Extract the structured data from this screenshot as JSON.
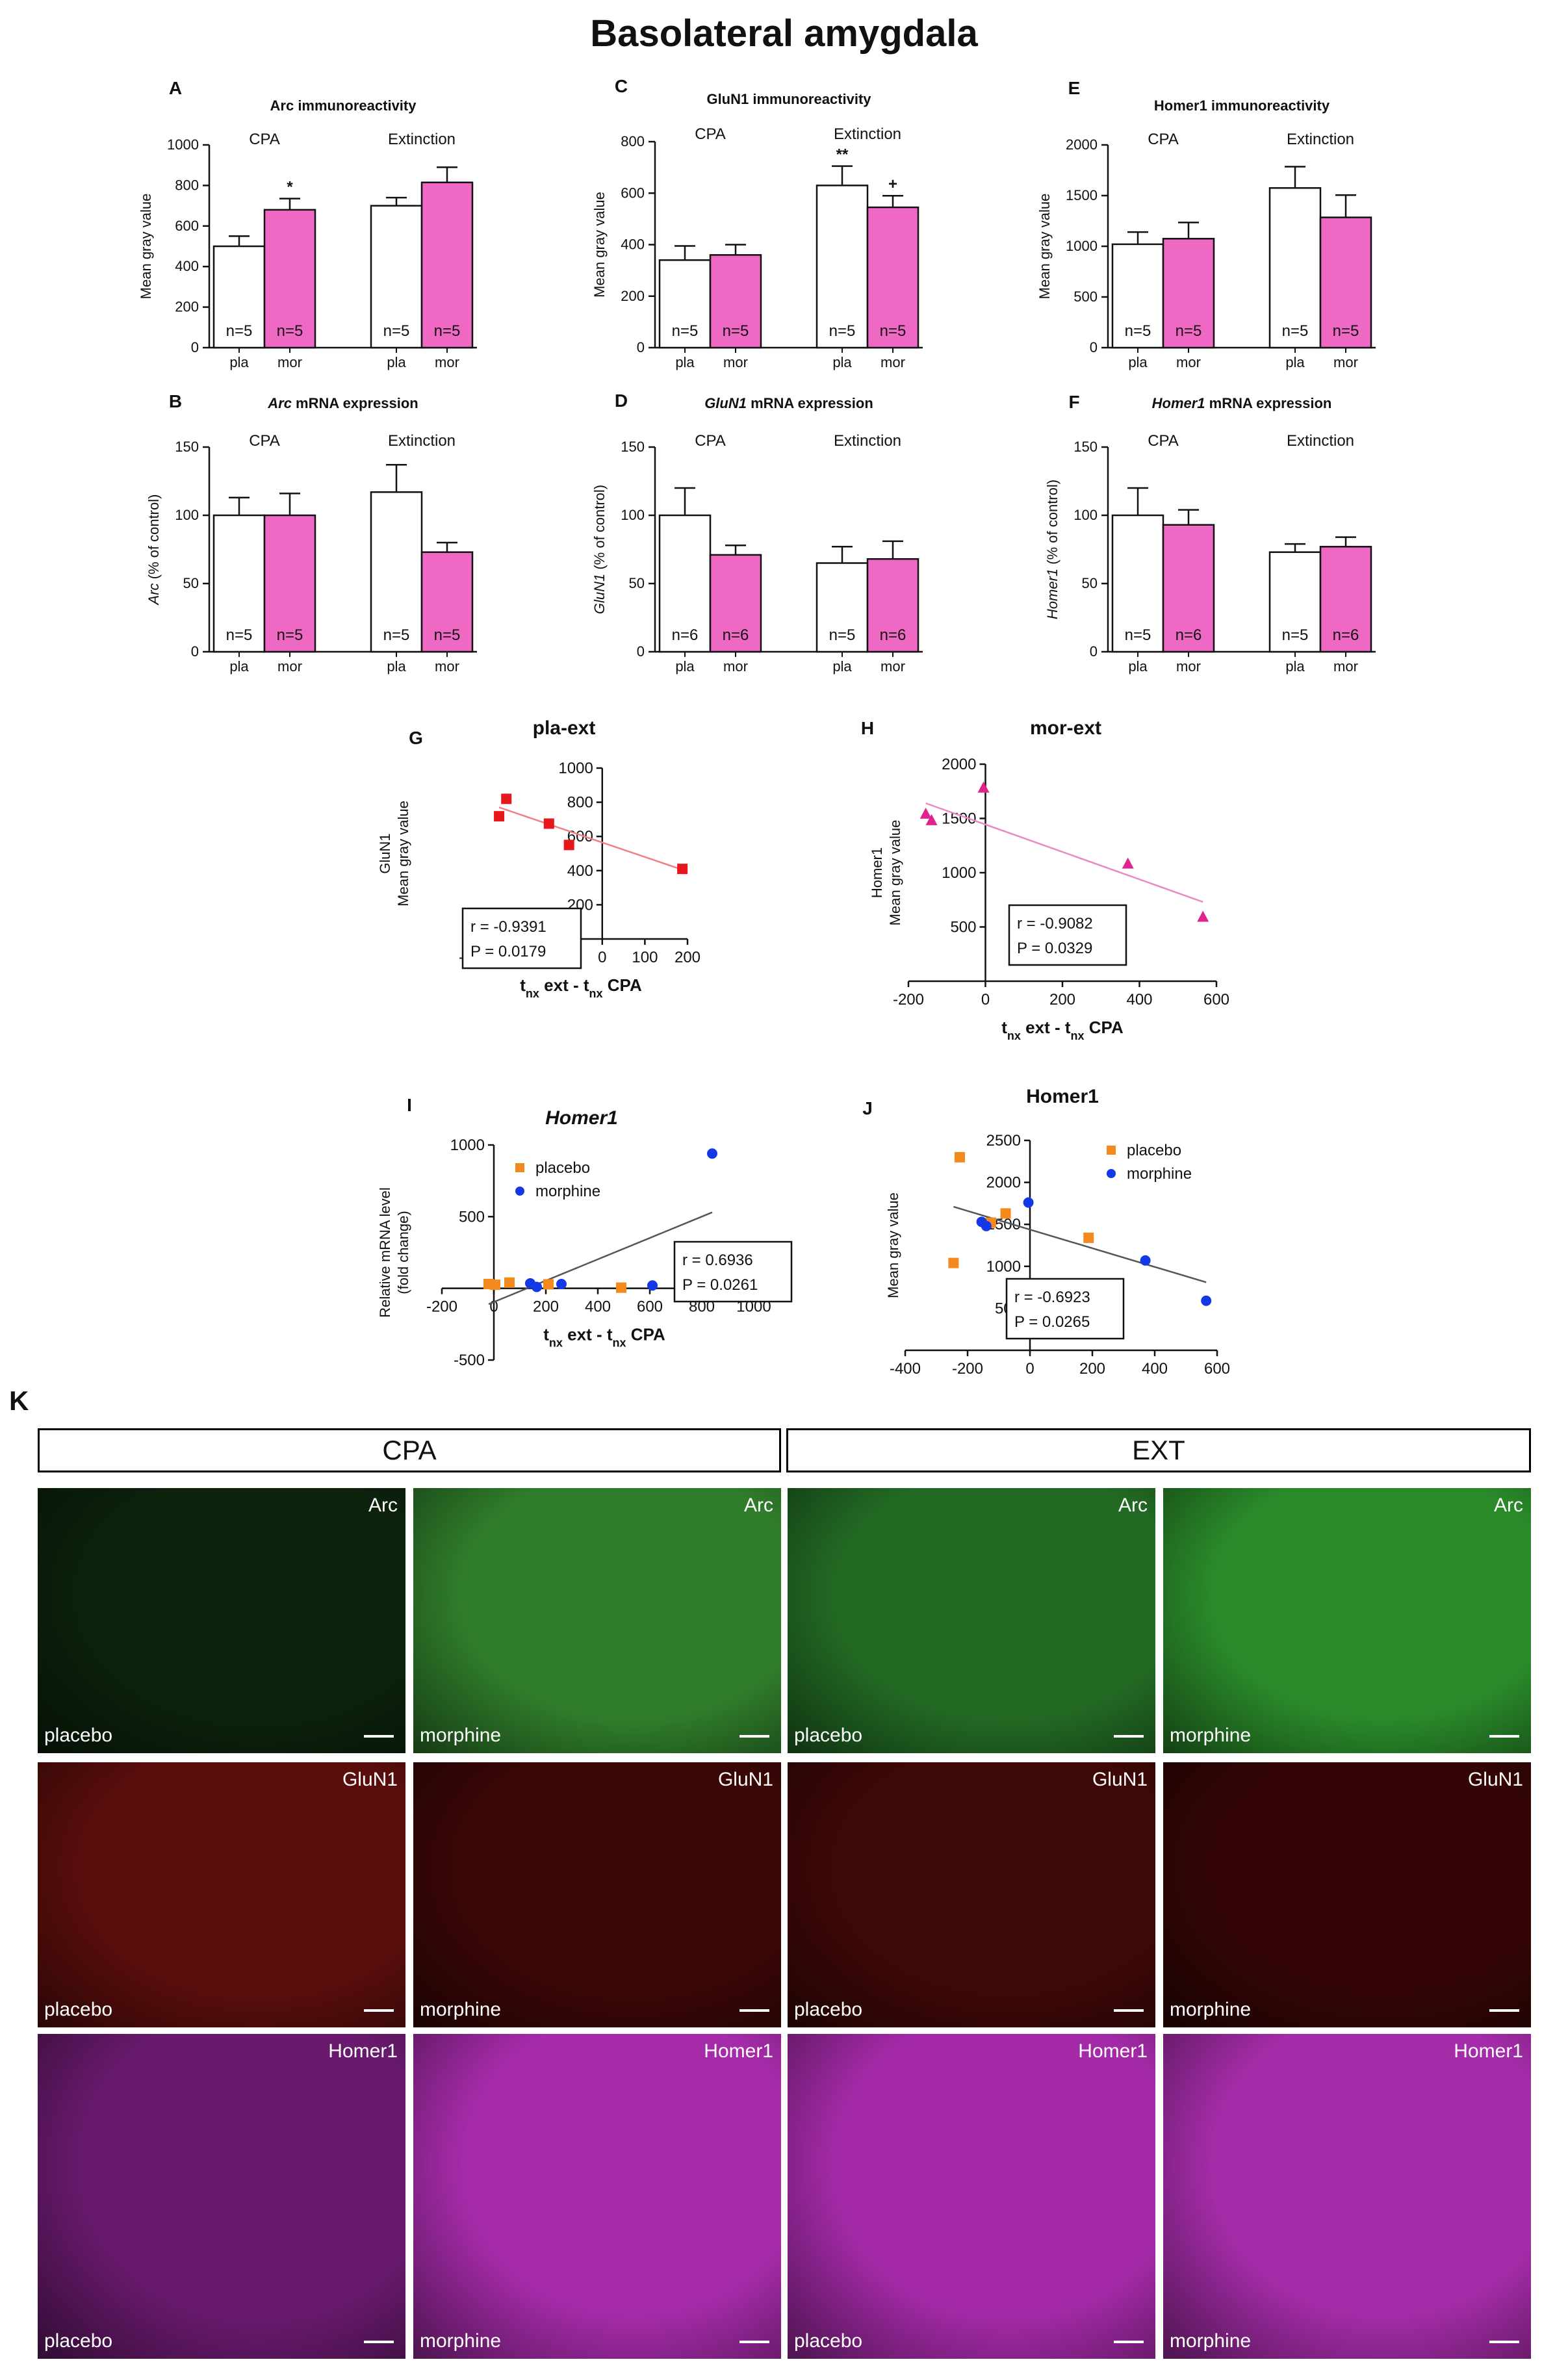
{
  "title": "Basolateral amygdala",
  "colors": {
    "placebo_bar": "#ffffff",
    "morphine_bar": "#ee68c4",
    "pla_ext_points": "#e8161d",
    "mor_ext_points": "#e0238f",
    "placebo_points": "#f28a1d",
    "morphine_points": "#1438e6",
    "trend_line": "#555555"
  },
  "bar_panels": [
    {
      "letter": "A",
      "title_parts": [
        {
          "text": "Arc immunoreactivity",
          "italic": false
        }
      ],
      "ylabel": "Mean gray value",
      "ylabel_italic_part": "",
      "group_labels": [
        "CPA",
        "Extinction"
      ],
      "tick_labels": [
        "pla",
        "mor",
        "pla",
        "mor"
      ],
      "n_labels": [
        "n=5",
        "n=5",
        "n=5",
        "n=5"
      ],
      "sig": [
        "",
        "*",
        "",
        ""
      ]
    },
    {
      "letter": "C",
      "title_parts": [
        {
          "text": "GluN1 immunoreactivity",
          "italic": false
        }
      ],
      "ylabel": "Mean gray value",
      "ylabel_italic_part": "",
      "group_labels": [
        "CPA",
        "Extinction"
      ],
      "tick_labels": [
        "pla",
        "mor",
        "pla",
        "mor"
      ],
      "n_labels": [
        "n=5",
        "n=5",
        "n=5",
        "n=5"
      ],
      "sig": [
        "",
        "",
        "**",
        "+"
      ]
    },
    {
      "letter": "E",
      "title_parts": [
        {
          "text": "Homer1 immunoreactivity",
          "italic": false
        }
      ],
      "ylabel": "Mean gray value",
      "ylabel_italic_part": "",
      "group_labels": [
        "CPA",
        "Extinction"
      ],
      "tick_labels": [
        "pla",
        "mor",
        "pla",
        "mor"
      ],
      "n_labels": [
        "n=5",
        "n=5",
        "n=5",
        "n=5"
      ],
      "sig": [
        "",
        "",
        "",
        ""
      ]
    },
    {
      "letter": "B",
      "title_parts": [
        {
          "text": "Arc",
          "italic": true
        },
        {
          "text": " mRNA expression",
          "italic": false
        }
      ],
      "ylabel": " (% of control)",
      "ylabel_italic_part": "Arc",
      "group_labels": [
        "CPA",
        "Extinction"
      ],
      "tick_labels": [
        "pla",
        "mor",
        "pla",
        "mor"
      ],
      "n_labels": [
        "n=5",
        "n=5",
        "n=5",
        "n=5"
      ],
      "sig": [
        "",
        "",
        "",
        ""
      ]
    },
    {
      "letter": "D",
      "title_parts": [
        {
          "text": "GluN1",
          "italic": true
        },
        {
          "text": " mRNA expression",
          "italic": false
        }
      ],
      "ylabel": " (% of control)",
      "ylabel_italic_part": "GluN1",
      "group_labels": [
        "CPA",
        "Extinction"
      ],
      "tick_labels": [
        "pla",
        "mor",
        "pla",
        "mor"
      ],
      "n_labels": [
        "n=6",
        "n=6",
        "n=5",
        "n=6"
      ],
      "sig": [
        "",
        "",
        "",
        ""
      ]
    },
    {
      "letter": "F",
      "title_parts": [
        {
          "text": "Homer1",
          "italic": true
        },
        {
          "text": " mRNA expression",
          "italic": false
        }
      ],
      "ylabel": " (% of control)",
      "ylabel_italic_part": "Homer1",
      "group_labels": [
        "CPA",
        "Extinction"
      ],
      "tick_labels": [
        "pla",
        "mor",
        "pla",
        "mor"
      ],
      "n_labels": [
        "n=5",
        "n=6",
        "n=5",
        "n=6"
      ],
      "sig": [
        "",
        "",
        "",
        ""
      ]
    }
  ],
  "scatter_panels": [
    {
      "letter": "G",
      "title": "pla-ext",
      "title_italic": false,
      "ylabel_lines": [
        "GluN1",
        "Mean gray value"
      ],
      "xlabel": "t_nx ext - t_nx CPA",
      "stat_lines": [
        "r = -0.9391",
        "P = 0.0179"
      ],
      "legend": []
    },
    {
      "letter": "H",
      "title": "mor-ext",
      "title_italic": false,
      "ylabel_lines": [
        "Homer1",
        "Mean gray value"
      ],
      "xlabel": "t_nx ext - t_nx CPA",
      "stat_lines": [
        "r = -0.9082",
        "P = 0.0329"
      ],
      "legend": []
    },
    {
      "letter": "I",
      "title": "Homer1",
      "title_italic": true,
      "ylabel_lines": [
        "Relative mRNA level",
        "(fold change)"
      ],
      "xlabel": "t_nx ext - t_nx CPA",
      "stat_lines": [
        "r = 0.6936",
        "P = 0.0261"
      ],
      "legend": [
        "placebo",
        "morphine"
      ]
    },
    {
      "letter": "J",
      "title": "Homer1",
      "title_italic": false,
      "ylabel_lines": [
        "Mean gray value"
      ],
      "xlabel": "t_nx ext - t_nx CPA",
      "stat_lines": [
        "r = -0.6923",
        "P = 0.0265"
      ],
      "legend": [
        "placebo",
        "morphine"
      ]
    }
  ],
  "chart_data": [
    {
      "type": "bar",
      "panel": "A",
      "title": "Arc immunoreactivity",
      "ylabel": "Mean gray value",
      "categories": [
        "pla",
        "mor",
        "pla",
        "mor"
      ],
      "groups": [
        "CPA",
        "CPA",
        "Extinction",
        "Extinction"
      ],
      "values": [
        500,
        680,
        700,
        815
      ],
      "errors": [
        50,
        55,
        40,
        75
      ],
      "ylim": [
        0,
        1000
      ],
      "yticks": [
        0,
        200,
        400,
        600,
        800,
        1000
      ]
    },
    {
      "type": "bar",
      "panel": "C",
      "title": "GluN1 immunoreactivity",
      "ylabel": "Mean gray value",
      "categories": [
        "pla",
        "mor",
        "pla",
        "mor"
      ],
      "groups": [
        "CPA",
        "CPA",
        "Extinction",
        "Extinction"
      ],
      "values": [
        340,
        360,
        630,
        545
      ],
      "errors": [
        55,
        40,
        75,
        45
      ],
      "ylim": [
        0,
        800
      ],
      "yticks": [
        0,
        200,
        400,
        600,
        800
      ]
    },
    {
      "type": "bar",
      "panel": "E",
      "title": "Homer1 immunoreactivity",
      "ylabel": "Mean gray value",
      "categories": [
        "pla",
        "mor",
        "pla",
        "mor"
      ],
      "groups": [
        "CPA",
        "CPA",
        "Extinction",
        "Extinction"
      ],
      "values": [
        1020,
        1075,
        1575,
        1285
      ],
      "errors": [
        120,
        160,
        210,
        220
      ],
      "ylim": [
        0,
        2000
      ],
      "yticks": [
        0,
        500,
        1000,
        1500,
        2000
      ]
    },
    {
      "type": "bar",
      "panel": "B",
      "title": "Arc mRNA expression",
      "ylabel": "Arc (% of control)",
      "categories": [
        "pla",
        "mor",
        "pla",
        "mor"
      ],
      "groups": [
        "CPA",
        "CPA",
        "Extinction",
        "Extinction"
      ],
      "values": [
        100,
        100,
        117,
        73
      ],
      "errors": [
        13,
        16,
        20,
        7
      ],
      "ylim": [
        0,
        150
      ],
      "yticks": [
        0,
        50,
        100,
        150
      ]
    },
    {
      "type": "bar",
      "panel": "D",
      "title": "GluN1 mRNA expression",
      "ylabel": "GluN1 (% of control)",
      "categories": [
        "pla",
        "mor",
        "pla",
        "mor"
      ],
      "groups": [
        "CPA",
        "CPA",
        "Extinction",
        "Extinction"
      ],
      "values": [
        100,
        71,
        65,
        68
      ],
      "errors": [
        20,
        7,
        12,
        13
      ],
      "ylim": [
        0,
        150
      ],
      "yticks": [
        0,
        50,
        100,
        150
      ]
    },
    {
      "type": "bar",
      "panel": "F",
      "title": "Homer1 mRNA expression",
      "ylabel": "Homer1 (% of control)",
      "categories": [
        "pla",
        "mor",
        "pla",
        "mor"
      ],
      "groups": [
        "CPA",
        "CPA",
        "Extinction",
        "Extinction"
      ],
      "values": [
        100,
        93,
        73,
        77
      ],
      "errors": [
        20,
        11,
        6,
        7
      ],
      "ylim": [
        0,
        150
      ],
      "yticks": [
        0,
        50,
        100,
        150
      ]
    },
    {
      "type": "scatter",
      "panel": "G",
      "title": "pla-ext",
      "xlabel": "t_nx ext - t_nx CPA",
      "ylabel": "GluN1 Mean gray value",
      "xlim": [
        -300,
        200
      ],
      "xticks": [
        -300,
        -200,
        -100,
        0,
        100,
        200
      ],
      "ylim": [
        0,
        1000
      ],
      "yticks": [
        200,
        400,
        600,
        800,
        1000
      ],
      "series": [
        {
          "name": "",
          "marker": "square",
          "x": [
            -242,
            -225,
            -125,
            -78,
            188
          ],
          "y": [
            718,
            820,
            675,
            550,
            410
          ]
        }
      ],
      "fit": [
        [
          -242,
          770
        ],
        [
          188,
          405
        ]
      ]
    },
    {
      "type": "scatter",
      "panel": "H",
      "title": "mor-ext",
      "xlabel": "t_nx ext - t_nx CPA",
      "ylabel": "Homer1 Mean gray value",
      "xlim": [
        -200,
        600
      ],
      "xticks": [
        -200,
        0,
        200,
        400,
        600
      ],
      "ylim": [
        0,
        2000
      ],
      "yticks": [
        500,
        1000,
        1500,
        2000
      ],
      "series": [
        {
          "name": "",
          "marker": "triangle",
          "x": [
            -155,
            -140,
            -5,
            370,
            565
          ],
          "y": [
            1540,
            1480,
            1780,
            1080,
            590
          ]
        }
      ],
      "fit": [
        [
          -155,
          1640
        ],
        [
          565,
          730
        ]
      ]
    },
    {
      "type": "scatter",
      "panel": "I",
      "title": "Homer1",
      "xlabel": "t_nx ext - t_nx CPA",
      "ylabel": "Relative mRNA level (fold change)",
      "xlim": [
        -200,
        1000
      ],
      "xticks": [
        -200,
        0,
        200,
        400,
        600,
        800,
        1000
      ],
      "ylim": [
        -500,
        1000
      ],
      "yticks": [
        -500,
        500,
        1000
      ],
      "series": [
        {
          "name": "placebo",
          "marker": "square",
          "x": [
            -20,
            5,
            60,
            210,
            490
          ],
          "y": [
            30,
            25,
            40,
            28,
            5
          ]
        },
        {
          "name": "morphine",
          "marker": "circle",
          "x": [
            140,
            165,
            260,
            610,
            840
          ],
          "y": [
            35,
            10,
            30,
            20,
            940
          ]
        }
      ],
      "fit": [
        [
          -20,
          -110
        ],
        [
          840,
          530
        ]
      ]
    },
    {
      "type": "scatter",
      "panel": "J",
      "title": "Homer1",
      "xlabel": "t_nx ext - t_nx CPA",
      "ylabel": "Mean gray value",
      "xlim": [
        -400,
        600
      ],
      "xticks": [
        -400,
        -200,
        0,
        200,
        400,
        600
      ],
      "ylim": [
        0,
        2500
      ],
      "yticks": [
        500,
        1000,
        1500,
        2000,
        2500
      ],
      "series": [
        {
          "name": "placebo",
          "marker": "square",
          "x": [
            -245,
            -225,
            -125,
            -78,
            188
          ],
          "y": [
            1040,
            2300,
            1520,
            1630,
            1340
          ]
        },
        {
          "name": "morphine",
          "marker": "circle",
          "x": [
            -155,
            -140,
            -5,
            370,
            565
          ],
          "y": [
            1530,
            1480,
            1760,
            1070,
            590
          ]
        }
      ],
      "fit": [
        [
          -245,
          1710
        ],
        [
          565,
          810
        ]
      ]
    }
  ],
  "micrographs": {
    "letter": "K",
    "headers": [
      "CPA",
      "EXT"
    ],
    "rows": [
      {
        "stain": "Arc",
        "cells": [
          {
            "cond": "placebo",
            "color": "#0c220d"
          },
          {
            "cond": "morphine",
            "color": "#2f7d2b"
          },
          {
            "cond": "placebo",
            "color": "#226a24"
          },
          {
            "cond": "morphine",
            "color": "#2a8a2a"
          }
        ]
      },
      {
        "stain": "GluN1",
        "cells": [
          {
            "cond": "placebo",
            "color": "#5a0e0c"
          },
          {
            "cond": "morphine",
            "color": "#3a0706"
          },
          {
            "cond": "placebo",
            "color": "#3e0807"
          },
          {
            "cond": "morphine",
            "color": "#330605"
          }
        ]
      },
      {
        "stain": "Homer1",
        "cells": [
          {
            "cond": "placebo",
            "color": "#6a1a6e"
          },
          {
            "cond": "morphine",
            "color": "#a52ba9"
          },
          {
            "cond": "placebo",
            "color": "#a42aa8"
          },
          {
            "cond": "morphine",
            "color": "#a42ca8"
          }
        ]
      }
    ]
  }
}
